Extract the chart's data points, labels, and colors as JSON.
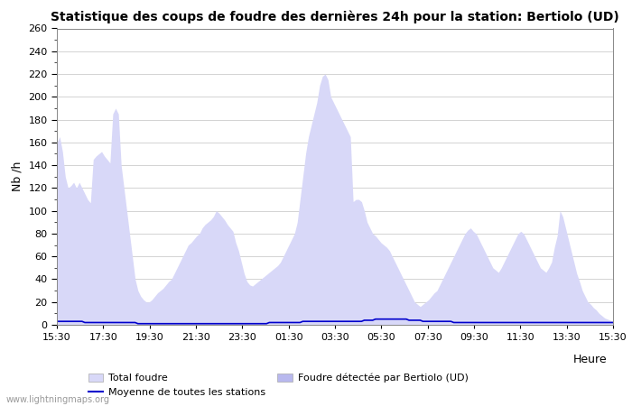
{
  "title": "Statistique des coups de foudre des dernières 24h pour la station: Bertiolo (UD)",
  "xlabel": "Heure",
  "ylabel": "Nb /h",
  "watermark": "www.lightningmaps.org",
  "ylim": [
    0,
    260
  ],
  "yticks": [
    0,
    20,
    40,
    60,
    80,
    100,
    120,
    140,
    160,
    180,
    200,
    220,
    240,
    260
  ],
  "xtick_labels": [
    "15:30",
    "17:30",
    "19:30",
    "21:30",
    "23:30",
    "01:30",
    "03:30",
    "05:30",
    "07:30",
    "09:30",
    "11:30",
    "13:30",
    "15:30"
  ],
  "bg_color": "#ffffff",
  "grid_color": "#cccccc",
  "fill_total_color": "#d8d8f8",
  "fill_bertiolo_color": "#b8b8ee",
  "line_avg_color": "#0000cc",
  "title_fontsize": 10,
  "total_foudre": [
    160,
    165,
    152,
    130,
    120,
    122,
    125,
    120,
    125,
    120,
    115,
    110,
    107,
    145,
    148,
    150,
    152,
    148,
    145,
    142,
    185,
    190,
    185,
    140,
    120,
    100,
    80,
    60,
    40,
    30,
    25,
    22,
    20,
    20,
    22,
    25,
    28,
    30,
    32,
    35,
    38,
    40,
    45,
    50,
    55,
    60,
    65,
    70,
    72,
    75,
    78,
    80,
    85,
    88,
    90,
    92,
    95,
    100,
    98,
    95,
    92,
    88,
    85,
    82,
    72,
    65,
    55,
    45,
    38,
    35,
    34,
    36,
    38,
    40,
    42,
    44,
    46,
    48,
    50,
    52,
    55,
    60,
    65,
    70,
    75,
    80,
    90,
    110,
    130,
    150,
    165,
    175,
    185,
    195,
    210,
    218,
    220,
    215,
    200,
    195,
    190,
    185,
    180,
    175,
    170,
    165,
    108,
    110,
    110,
    108,
    100,
    90,
    85,
    80,
    78,
    75,
    72,
    70,
    68,
    65,
    60,
    55,
    50,
    45,
    40,
    35,
    30,
    25,
    20,
    18,
    16,
    18,
    20,
    22,
    25,
    28,
    30,
    35,
    40,
    45,
    50,
    55,
    60,
    65,
    70,
    75,
    80,
    83,
    85,
    82,
    80,
    75,
    70,
    65,
    60,
    55,
    50,
    48,
    46,
    50,
    55,
    60,
    65,
    70,
    75,
    80,
    82,
    80,
    75,
    70,
    65,
    60,
    55,
    50,
    48,
    46,
    50,
    55,
    68,
    78,
    100,
    95,
    85,
    75,
    65,
    55,
    45,
    38,
    30,
    25,
    20,
    18,
    15,
    13,
    10,
    8,
    6,
    5,
    4,
    3
  ],
  "bertiolo_foudre": [
    0,
    0,
    0,
    0,
    0,
    0,
    0,
    0,
    0,
    0,
    0,
    0,
    0,
    0,
    0,
    0,
    0,
    0,
    0,
    0,
    0,
    0,
    0,
    0,
    0,
    0,
    0,
    0,
    0,
    0,
    0,
    0,
    0,
    0,
    0,
    0,
    0,
    0,
    0,
    0,
    0,
    0,
    0,
    0,
    0,
    0,
    0,
    0,
    0,
    0,
    0,
    0,
    0,
    0,
    0,
    0,
    0,
    0,
    0,
    0,
    0,
    0,
    0,
    0,
    0,
    0,
    0,
    0,
    0,
    0,
    0,
    0,
    0,
    0,
    0,
    0,
    0,
    0,
    0,
    0,
    0,
    0,
    0,
    0,
    0,
    0,
    0,
    0,
    0,
    0,
    0,
    0,
    0,
    0,
    0,
    0,
    0,
    0,
    0,
    0,
    0,
    0,
    0,
    0,
    0,
    0,
    0,
    0,
    0,
    0,
    0,
    0,
    0,
    0,
    0,
    0,
    0,
    0,
    0,
    0,
    0,
    0,
    0,
    0,
    0,
    0,
    0,
    0,
    0,
    0,
    0,
    0,
    0,
    0,
    0,
    0,
    0,
    0,
    0,
    0,
    0,
    0,
    0,
    0,
    0,
    0,
    0,
    0,
    0,
    0,
    0,
    0,
    0,
    0,
    0,
    0,
    0,
    0,
    0,
    0,
    0,
    0,
    0,
    0,
    0,
    0,
    0,
    0,
    0,
    0,
    0,
    0,
    0,
    0,
    0,
    0,
    0,
    0,
    0,
    0,
    0,
    0,
    0,
    0,
    0,
    0,
    0,
    0,
    0,
    0,
    0,
    0,
    0,
    0,
    0,
    0,
    0,
    0,
    0,
    0
  ],
  "avg_line": [
    3,
    3,
    3,
    3,
    3,
    3,
    3,
    3,
    3,
    3,
    2,
    2,
    2,
    2,
    2,
    2,
    2,
    2,
    2,
    2,
    2,
    2,
    2,
    2,
    2,
    2,
    2,
    2,
    2,
    1,
    1,
    1,
    1,
    1,
    1,
    1,
    1,
    1,
    1,
    1,
    1,
    1,
    1,
    1,
    1,
    1,
    1,
    1,
    1,
    1,
    1,
    1,
    1,
    1,
    1,
    1,
    1,
    1,
    1,
    1,
    1,
    1,
    1,
    1,
    1,
    1,
    1,
    1,
    1,
    1,
    1,
    1,
    1,
    1,
    1,
    1,
    2,
    2,
    2,
    2,
    2,
    2,
    2,
    2,
    2,
    2,
    2,
    2,
    3,
    3,
    3,
    3,
    3,
    3,
    3,
    3,
    3,
    3,
    3,
    3,
    3,
    3,
    3,
    3,
    3,
    3,
    3,
    3,
    3,
    3,
    4,
    4,
    4,
    4,
    5,
    5,
    5,
    5,
    5,
    5,
    5,
    5,
    5,
    5,
    5,
    5,
    4,
    4,
    4,
    4,
    4,
    3,
    3,
    3,
    3,
    3,
    3,
    3,
    3,
    3,
    3,
    3,
    2,
    2,
    2,
    2,
    2,
    2,
    2,
    2,
    2,
    2,
    2,
    2,
    2,
    2,
    2,
    2,
    2,
    2,
    2,
    2,
    2,
    2,
    2,
    2,
    2,
    2,
    2,
    2,
    2,
    2,
    2,
    2,
    2,
    2,
    2,
    2,
    2,
    2,
    2,
    2,
    2,
    2,
    2,
    2,
    2,
    2,
    2,
    2,
    2,
    2,
    2,
    2,
    2,
    2,
    2,
    2,
    2,
    2
  ],
  "legend_items": [
    {
      "label": "Total foudre",
      "type": "patch",
      "color": "#d8d8f8"
    },
    {
      "label": "Moyenne de toutes les stations",
      "type": "line",
      "color": "#0000cc"
    },
    {
      "label": "Foudre détectée par Bertiolo (UD)",
      "type": "patch",
      "color": "#b8b8ee"
    }
  ]
}
